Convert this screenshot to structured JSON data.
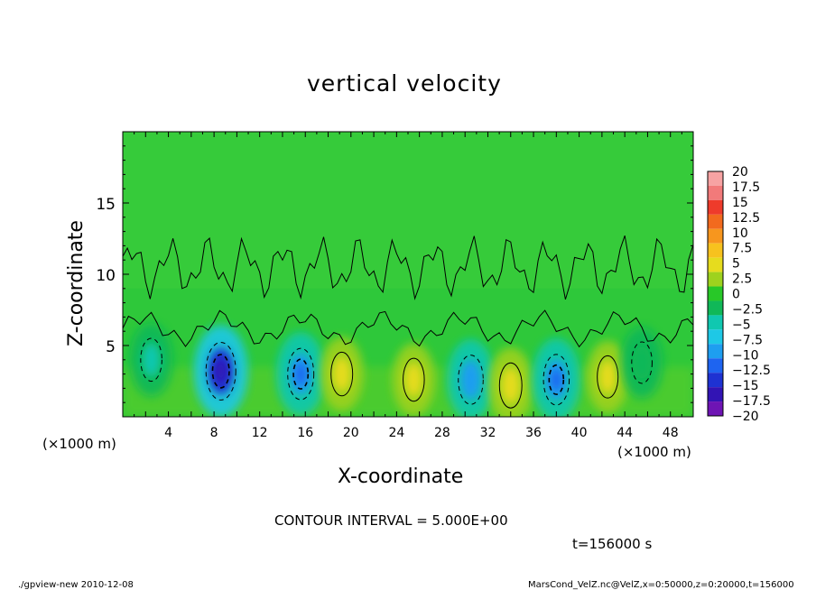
{
  "chart_data": {
    "type": "heatmap",
    "title": "vertical velocity",
    "xlabel": "X-coordinate",
    "ylabel": "Z-coordinate",
    "x_units": "(×1000 m)",
    "y_units": "(×1000 m)",
    "xlim": [
      0,
      50
    ],
    "ylim": [
      0,
      20
    ],
    "x_ticks": [
      "4",
      "8",
      "12",
      "16",
      "20",
      "24",
      "28",
      "32",
      "36",
      "40",
      "44",
      "48"
    ],
    "y_ticks": [
      "5",
      "10",
      "15"
    ],
    "colorbar": {
      "labels": [
        "20",
        "17.5",
        "15",
        "12.5",
        "10",
        "7.5",
        "5",
        "2.5",
        "0",
        "−2.5",
        "−5",
        "−7.5",
        "−10",
        "−12.5",
        "−15",
        "−17.5",
        "−20"
      ],
      "colors": [
        "#f7a3a3",
        "#f27a7a",
        "#ee3b2b",
        "#f26a1e",
        "#f7961e",
        "#f7c21e",
        "#e6dc1e",
        "#9ed21e",
        "#28c828",
        "#10b858",
        "#10c8b0",
        "#1ec8e6",
        "#1e9ef0",
        "#1e64f0",
        "#1e32d2",
        "#3214b4",
        "#6e14b4"
      ]
    },
    "cells": [
      {
        "x": 8.6,
        "z": 3.2,
        "w": -15.0
      },
      {
        "x": 15.6,
        "z": 3.0,
        "w": -10.5
      },
      {
        "x": 19.2,
        "z": 3.0,
        "w": 5.0
      },
      {
        "x": 25.5,
        "z": 2.6,
        "w": 4.5
      },
      {
        "x": 30.5,
        "z": 2.6,
        "w": -9.0
      },
      {
        "x": 34.0,
        "z": 2.2,
        "w": 6.0
      },
      {
        "x": 38.0,
        "z": 2.6,
        "w": -10.0
      },
      {
        "x": 42.5,
        "z": 2.8,
        "w": 4.0
      },
      {
        "x": 2.5,
        "z": 4.0,
        "w": -4.5
      },
      {
        "x": 45.5,
        "z": 3.8,
        "w": -3.5
      }
    ],
    "contour_interval": "CONTOUR INTERVAL = 5.000E+00",
    "time": "t=156000 s"
  },
  "footer": {
    "left": "./gpview-new  2010-12-08",
    "right": "MarsCond_VelZ.nc@VelZ,x=0:50000,z=0:20000,t=156000"
  },
  "colors": {
    "background": "#ffffff",
    "field_base": "#2ec83a",
    "upper_field": "#3ccd3a"
  }
}
